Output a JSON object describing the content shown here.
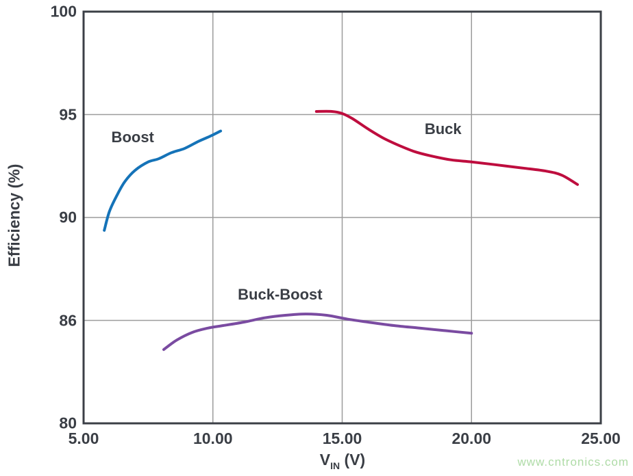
{
  "page": {
    "background": "#ffffff",
    "watermark": {
      "text": "www.cntronics.com",
      "color": "#aedba6"
    }
  },
  "styles": {
    "frame_color": "#3b3f46",
    "grid_color": "#9b9b9b",
    "text_color": "#3a3e45"
  },
  "chart_data": {
    "type": "line",
    "title": "",
    "xlabel_parts": {
      "main": "V",
      "sub": "IN",
      "rest": " (V)"
    },
    "ylabel": "Efficiency (%)",
    "grid": true,
    "xlim": [
      5,
      25
    ],
    "x_ticks": [
      {
        "value": 5,
        "label": "5.00"
      },
      {
        "value": 10,
        "label": "10.00"
      },
      {
        "value": 15,
        "label": "15.00"
      },
      {
        "value": 20,
        "label": "20.00"
      },
      {
        "value": 25,
        "label": "25.00"
      }
    ],
    "y_ticks": [
      {
        "value": 100,
        "label": "100"
      },
      {
        "value": 95,
        "label": "95"
      },
      {
        "value": 90,
        "label": "90"
      },
      {
        "value": 86,
        "label": "86"
      },
      {
        "value": 80,
        "label": "80"
      }
    ],
    "series": [
      {
        "name": "Boost",
        "color": "#1573b8",
        "label": {
          "text": "Boost",
          "x": 6.9,
          "y": 93.9
        },
        "points": [
          [
            5.8,
            89.5
          ],
          [
            6.0,
            90.3
          ],
          [
            6.3,
            91.1
          ],
          [
            6.6,
            91.75
          ],
          [
            7.0,
            92.3
          ],
          [
            7.5,
            92.7
          ],
          [
            7.9,
            92.85
          ],
          [
            8.4,
            93.15
          ],
          [
            8.9,
            93.35
          ],
          [
            9.45,
            93.7
          ],
          [
            9.9,
            93.95
          ],
          [
            10.3,
            94.2
          ]
        ]
      },
      {
        "name": "Buck",
        "color": "#be0d3e",
        "label": {
          "text": "Buck",
          "x": 18.9,
          "y": 94.3
        },
        "points": [
          [
            14.0,
            95.15
          ],
          [
            14.6,
            95.15
          ],
          [
            15.0,
            95.05
          ],
          [
            15.4,
            94.8
          ],
          [
            16.0,
            94.3
          ],
          [
            16.6,
            93.85
          ],
          [
            17.2,
            93.5
          ],
          [
            17.8,
            93.2
          ],
          [
            18.4,
            93.0
          ],
          [
            19.2,
            92.8
          ],
          [
            20.0,
            92.7
          ],
          [
            21.0,
            92.55
          ],
          [
            22.0,
            92.4
          ],
          [
            22.9,
            92.25
          ],
          [
            23.5,
            92.05
          ],
          [
            24.1,
            91.6
          ]
        ]
      },
      {
        "name": "Buck-Boost",
        "color": "#7a4ba1",
        "label": {
          "text": "Buck-Boost",
          "x": 12.6,
          "y": 87.0
        },
        "points": [
          [
            8.1,
            84.3
          ],
          [
            8.6,
            84.85
          ],
          [
            9.2,
            85.3
          ],
          [
            9.8,
            85.55
          ],
          [
            10.4,
            85.7
          ],
          [
            11.2,
            85.9
          ],
          [
            12.0,
            86.1
          ],
          [
            12.8,
            86.2
          ],
          [
            13.6,
            86.25
          ],
          [
            14.4,
            86.2
          ],
          [
            15.2,
            86.05
          ],
          [
            16.0,
            85.9
          ],
          [
            17.0,
            85.7
          ],
          [
            18.0,
            85.55
          ],
          [
            19.0,
            85.4
          ],
          [
            20.0,
            85.25
          ]
        ]
      }
    ]
  }
}
